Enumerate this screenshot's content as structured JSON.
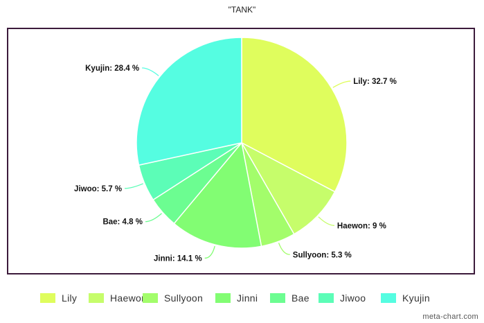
{
  "chart_data": {
    "type": "pie",
    "title": "\"TANK\"",
    "slices": [
      {
        "name": "Lily",
        "value": 32.7,
        "label": "Lily: 32.7 %",
        "color": "#dffd5d"
      },
      {
        "name": "Haewon",
        "value": 9,
        "label": "Haewon: 9 %",
        "color": "#c6fd6b"
      },
      {
        "name": "Sullyoon",
        "value": 5.3,
        "label": "Sullyoon: 5.3 %",
        "color": "#a3fd6b"
      },
      {
        "name": "Jinni",
        "value": 14.1,
        "label": "Jinni: 14.1 %",
        "color": "#82fd73"
      },
      {
        "name": "Bae",
        "value": 4.8,
        "label": "Bae: 4.8 %",
        "color": "#6cfd91"
      },
      {
        "name": "Jiwoo",
        "value": 5.7,
        "label": "Jiwoo: 5.7 %",
        "color": "#5cfdb7"
      },
      {
        "name": "Kyujin",
        "value": 28.4,
        "label": "Kyujin: 28.4 %",
        "color": "#55fde1"
      }
    ],
    "legend_position": "bottom"
  },
  "credit": "meta-chart.com"
}
